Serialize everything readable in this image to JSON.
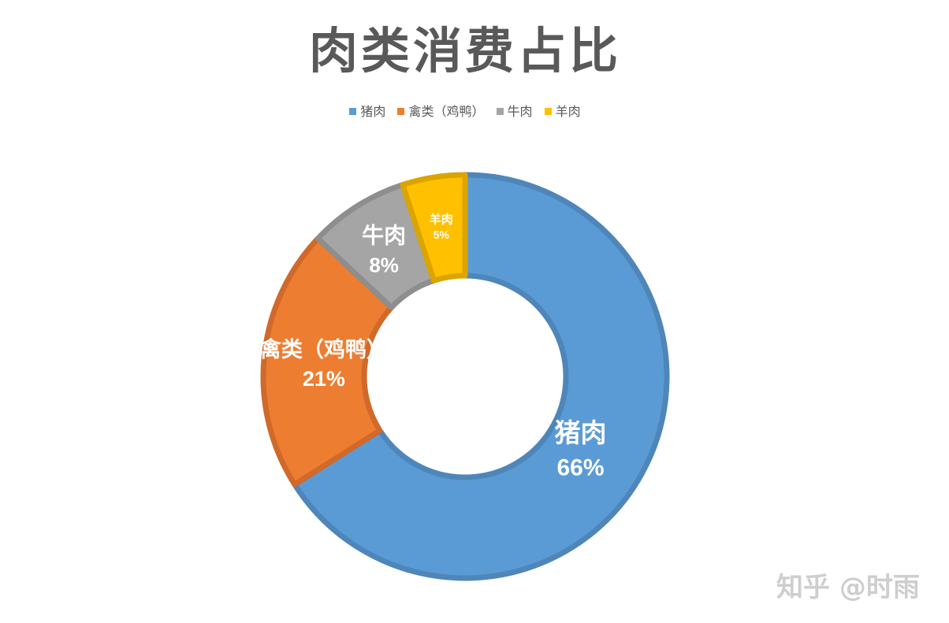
{
  "chart_data": {
    "type": "pie",
    "variant": "donut",
    "title": "肉类消费占比",
    "categories": [
      "猪肉",
      "禽类（鸡鸭）",
      "牛肉",
      "羊肉"
    ],
    "values": [
      66,
      21,
      8,
      5
    ],
    "data_labels": [
      "66%",
      "21%",
      "8%",
      "5%"
    ],
    "colors": [
      "#5B9BD5",
      "#ED7D31",
      "#A5A5A5",
      "#FFC000"
    ],
    "border_colors": [
      "#4E86B9",
      "#D0692A",
      "#8E8E8E",
      "#DBA500"
    ],
    "legend_position": "top",
    "start_angle": "top-clockwise"
  },
  "legend": {
    "items": [
      {
        "label": "猪肉",
        "color": "#5B9BD5"
      },
      {
        "label": "禽类（鸡鸭）",
        "color": "#ED7D31"
      },
      {
        "label": "牛肉",
        "color": "#A5A5A5"
      },
      {
        "label": "羊肉",
        "color": "#FFC000"
      }
    ]
  },
  "watermark": "知乎 @时雨"
}
